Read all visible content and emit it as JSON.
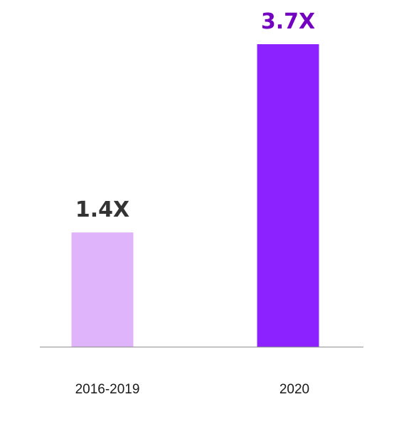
{
  "chart_data": {
    "type": "bar",
    "categories": [
      "2016-2019",
      "2020"
    ],
    "values": [
      1.4,
      3.7
    ],
    "data_labels": [
      "1.4X",
      "3.7X"
    ],
    "title": "",
    "xlabel": "",
    "ylabel": "",
    "ylim": [
      0,
      4.24
    ],
    "grid": false,
    "legend": "none",
    "colors": {
      "bars": [
        "#dfb4fb",
        "#8b22ff"
      ],
      "data_labels": [
        "#333333",
        "#7300c0"
      ],
      "baseline": "#888888"
    }
  }
}
